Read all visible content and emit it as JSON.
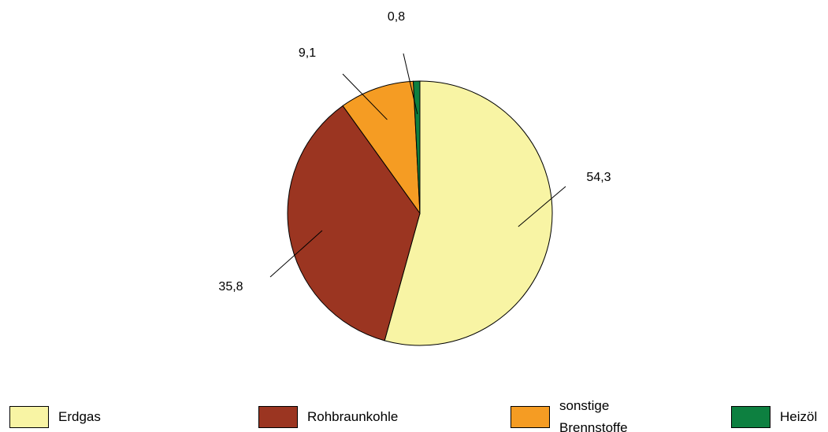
{
  "chart_data": {
    "type": "pie",
    "categories": [
      "Erdgas",
      "Rohbraunkohle",
      "sonstige Brennstoffe",
      "Heizöl"
    ],
    "values": [
      54.3,
      35.8,
      9.1,
      0.8
    ],
    "value_labels": [
      "54,3",
      "35,8",
      "9,1",
      "0,8"
    ],
    "colors": [
      "#f8f4a4",
      "#9b3521",
      "#f59c23",
      "#0d8040"
    ]
  }
}
